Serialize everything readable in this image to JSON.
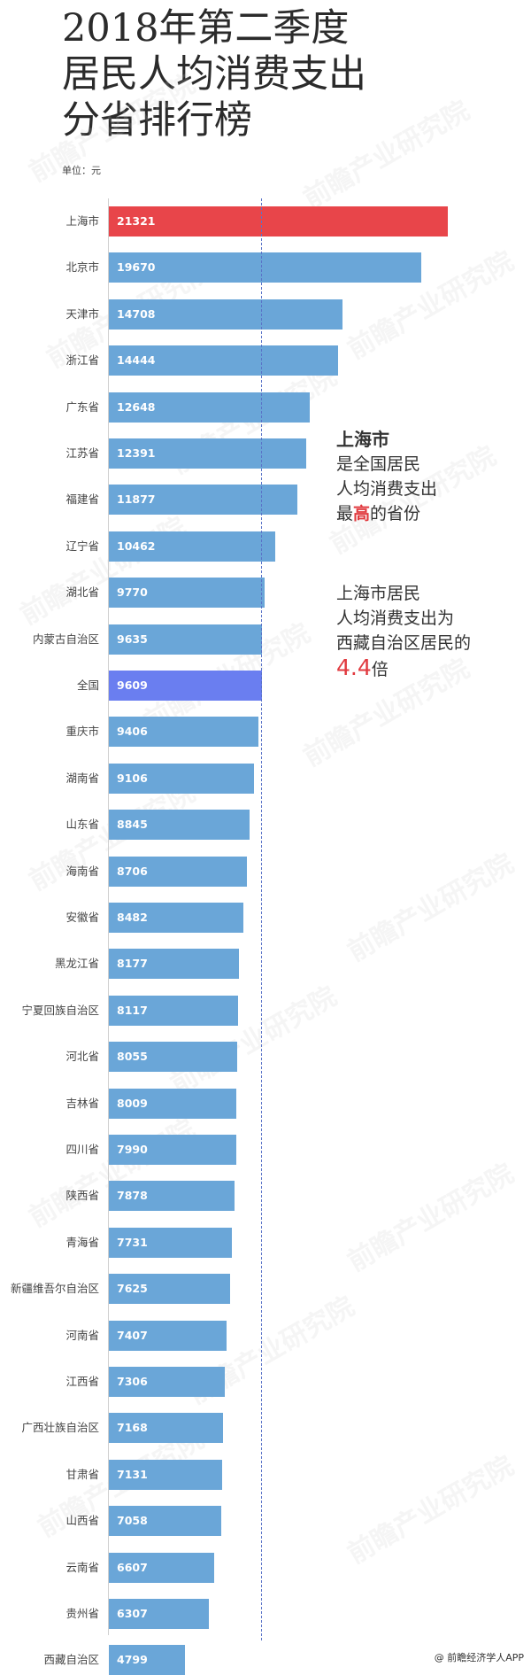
{
  "header": {
    "title_lines": [
      "2018年第二季度",
      "居民人均消费支出",
      "分省排行榜"
    ],
    "unit": "单位：元"
  },
  "annotation": {
    "line1": "上海市",
    "line2": "是全国居民",
    "line3": "人均消费支出",
    "line4_pre": "最",
    "line4_hl": "高",
    "line4_post": "的省份",
    "line5": "上海市居民",
    "line6": "人均消费支出为",
    "line7": "西藏自治区居民的",
    "line8_num": "4.4",
    "line8_post": "倍"
  },
  "footer": {
    "credit": "@ 前瞻经济学人APP"
  },
  "watermark": "前瞻产业研究院",
  "colors": {
    "default_bar": "#6aa6d8",
    "top_bar": "#e8454a",
    "national_bar": "#6a7ef0",
    "avg_line": "#5a73c8",
    "highlight_text": "#e13a3f"
  },
  "chart_data": {
    "type": "bar",
    "orientation": "horizontal",
    "title": "2018年第二季度居民人均消费支出分省排行榜",
    "unit": "元",
    "xlabel": "",
    "ylabel": "",
    "xlim": [
      0,
      21321
    ],
    "grid": false,
    "reference_line": {
      "label": "全国",
      "value": 9609,
      "style": "dashed"
    },
    "categories": [
      "上海市",
      "北京市",
      "天津市",
      "浙江省",
      "广东省",
      "江苏省",
      "福建省",
      "辽宁省",
      "湖北省",
      "内蒙古自治区",
      "全国",
      "重庆市",
      "湖南省",
      "山东省",
      "海南省",
      "安徽省",
      "黑龙江省",
      "宁夏回族自治区",
      "河北省",
      "吉林省",
      "四川省",
      "陕西省",
      "青海省",
      "新疆维吾尔自治区",
      "河南省",
      "江西省",
      "广西壮族自治区",
      "甘肃省",
      "山西省",
      "云南省",
      "贵州省",
      "西藏自治区"
    ],
    "values": [
      21321,
      19670,
      14708,
      14444,
      12648,
      12391,
      11877,
      10462,
      9770,
      9635,
      9609,
      9406,
      9106,
      8845,
      8706,
      8482,
      8177,
      8117,
      8055,
      8009,
      7990,
      7878,
      7731,
      7625,
      7407,
      7306,
      7168,
      7131,
      7058,
      6607,
      6307,
      4799
    ],
    "highlights": {
      "上海市": "top",
      "全国": "national"
    }
  }
}
